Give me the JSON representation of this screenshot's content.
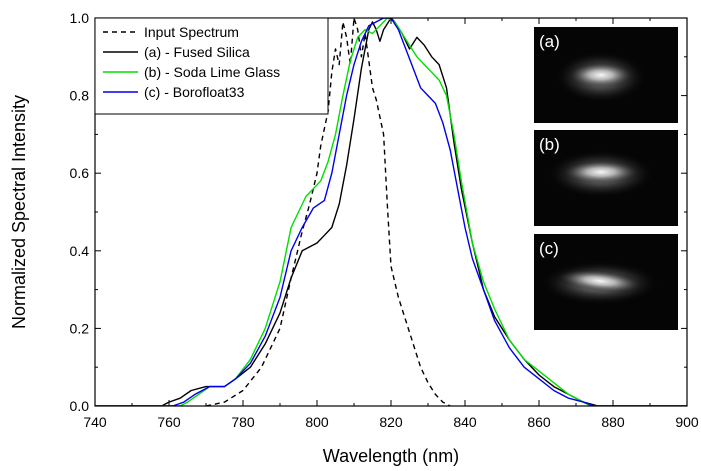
{
  "chart_data": {
    "type": "line",
    "xlabel": "Wavelength (nm)",
    "ylabel": "Normalized Spectral Intensity",
    "xlim": [
      740,
      900
    ],
    "ylim": [
      0.0,
      1.0
    ],
    "xticks": [
      "740",
      "760",
      "780",
      "800",
      "820",
      "840",
      "860",
      "880",
      "900"
    ],
    "yticks": [
      "0.0",
      "0.2",
      "0.4",
      "0.6",
      "0.8",
      "1.0"
    ],
    "grid": false,
    "legend_position": "top-left",
    "series": [
      {
        "name": "Input Spectrum",
        "color": "#000000",
        "dash": "dashed",
        "points": [
          [
            770,
            0
          ],
          [
            775,
            0.01
          ],
          [
            780,
            0.04
          ],
          [
            785,
            0.1
          ],
          [
            790,
            0.2
          ],
          [
            793,
            0.33
          ],
          [
            796,
            0.45
          ],
          [
            798,
            0.52
          ],
          [
            800,
            0.6
          ],
          [
            801,
            0.67
          ],
          [
            803,
            0.76
          ],
          [
            804,
            0.86
          ],
          [
            805,
            0.92
          ],
          [
            806,
            0.88
          ],
          [
            807,
            0.99
          ],
          [
            808,
            0.95
          ],
          [
            809,
            0.88
          ],
          [
            810,
            1.0
          ],
          [
            811,
            0.97
          ],
          [
            812,
            0.9
          ],
          [
            813,
            0.96
          ],
          [
            814,
            0.89
          ],
          [
            815,
            0.82
          ],
          [
            816,
            0.79
          ],
          [
            818,
            0.7
          ],
          [
            819,
            0.52
          ],
          [
            820,
            0.36
          ],
          [
            822,
            0.28
          ],
          [
            824,
            0.22
          ],
          [
            826,
            0.16
          ],
          [
            828,
            0.1
          ],
          [
            830,
            0.06
          ],
          [
            832,
            0.03
          ],
          [
            834,
            0.01
          ],
          [
            836,
            0
          ]
        ]
      },
      {
        "name": "(a) - Fused Silica",
        "color": "#000000",
        "dash": "solid",
        "points": [
          [
            758,
            0
          ],
          [
            760,
            0.01
          ],
          [
            763,
            0.02
          ],
          [
            766,
            0.04
          ],
          [
            770,
            0.05
          ],
          [
            775,
            0.05
          ],
          [
            778,
            0.07
          ],
          [
            782,
            0.1
          ],
          [
            786,
            0.16
          ],
          [
            790,
            0.24
          ],
          [
            793,
            0.33
          ],
          [
            796,
            0.4
          ],
          [
            798,
            0.41
          ],
          [
            800,
            0.42
          ],
          [
            802,
            0.44
          ],
          [
            804,
            0.46
          ],
          [
            806,
            0.52
          ],
          [
            808,
            0.62
          ],
          [
            810,
            0.74
          ],
          [
            812,
            0.87
          ],
          [
            814,
            0.97
          ],
          [
            815,
            0.99
          ],
          [
            816,
            0.97
          ],
          [
            817,
            0.94
          ],
          [
            818,
            0.97
          ],
          [
            820,
            1.0
          ],
          [
            821,
            0.99
          ],
          [
            823,
            0.96
          ],
          [
            825,
            0.92
          ],
          [
            827,
            0.95
          ],
          [
            829,
            0.93
          ],
          [
            831,
            0.9
          ],
          [
            833,
            0.88
          ],
          [
            835,
            0.82
          ],
          [
            837,
            0.68
          ],
          [
            839,
            0.56
          ],
          [
            842,
            0.42
          ],
          [
            845,
            0.3
          ],
          [
            848,
            0.23
          ],
          [
            852,
            0.17
          ],
          [
            856,
            0.12
          ],
          [
            860,
            0.08
          ],
          [
            864,
            0.05
          ],
          [
            868,
            0.03
          ],
          [
            872,
            0.01
          ],
          [
            876,
            0
          ]
        ]
      },
      {
        "name": "(b) - Soda Lime Glass",
        "color": "#00dd00",
        "dash": "solid",
        "points": [
          [
            763,
            0
          ],
          [
            765,
            0.01
          ],
          [
            768,
            0.03
          ],
          [
            771,
            0.05
          ],
          [
            775,
            0.05
          ],
          [
            778,
            0.07
          ],
          [
            782,
            0.12
          ],
          [
            786,
            0.2
          ],
          [
            790,
            0.32
          ],
          [
            793,
            0.46
          ],
          [
            795,
            0.5
          ],
          [
            797,
            0.54
          ],
          [
            799,
            0.56
          ],
          [
            801,
            0.58
          ],
          [
            803,
            0.63
          ],
          [
            805,
            0.7
          ],
          [
            807,
            0.8
          ],
          [
            809,
            0.89
          ],
          [
            811,
            0.95
          ],
          [
            813,
            0.97
          ],
          [
            815,
            0.96
          ],
          [
            817,
            0.98
          ],
          [
            819,
            1.0
          ],
          [
            821,
            0.99
          ],
          [
            823,
            0.96
          ],
          [
            825,
            0.93
          ],
          [
            827,
            0.9
          ],
          [
            829,
            0.88
          ],
          [
            831,
            0.86
          ],
          [
            833,
            0.84
          ],
          [
            835,
            0.8
          ],
          [
            837,
            0.7
          ],
          [
            839,
            0.58
          ],
          [
            842,
            0.42
          ],
          [
            845,
            0.32
          ],
          [
            848,
            0.25
          ],
          [
            852,
            0.17
          ],
          [
            856,
            0.12
          ],
          [
            860,
            0.09
          ],
          [
            864,
            0.06
          ],
          [
            868,
            0.03
          ],
          [
            872,
            0.01
          ],
          [
            874,
            0
          ]
        ]
      },
      {
        "name": "(c) - Borofloat33",
        "color": "#0000ee",
        "dash": "solid",
        "points": [
          [
            761,
            0
          ],
          [
            764,
            0.01
          ],
          [
            767,
            0.03
          ],
          [
            771,
            0.05
          ],
          [
            775,
            0.05
          ],
          [
            778,
            0.07
          ],
          [
            782,
            0.11
          ],
          [
            786,
            0.18
          ],
          [
            790,
            0.28
          ],
          [
            793,
            0.4
          ],
          [
            796,
            0.46
          ],
          [
            799,
            0.51
          ],
          [
            802,
            0.53
          ],
          [
            804,
            0.6
          ],
          [
            806,
            0.7
          ],
          [
            808,
            0.8
          ],
          [
            810,
            0.88
          ],
          [
            812,
            0.94
          ],
          [
            814,
            0.98
          ],
          [
            816,
            0.99
          ],
          [
            818,
            1.0
          ],
          [
            820,
            1.0
          ],
          [
            822,
            0.97
          ],
          [
            824,
            0.92
          ],
          [
            826,
            0.87
          ],
          [
            828,
            0.82
          ],
          [
            830,
            0.8
          ],
          [
            832,
            0.78
          ],
          [
            834,
            0.73
          ],
          [
            836,
            0.66
          ],
          [
            838,
            0.56
          ],
          [
            840,
            0.46
          ],
          [
            842,
            0.38
          ],
          [
            845,
            0.3
          ],
          [
            848,
            0.22
          ],
          [
            852,
            0.15
          ],
          [
            856,
            0.1
          ],
          [
            860,
            0.07
          ],
          [
            864,
            0.04
          ],
          [
            868,
            0.02
          ],
          [
            872,
            0.01
          ],
          [
            875,
            0
          ]
        ]
      }
    ],
    "insets": [
      {
        "label": "(a)"
      },
      {
        "label": "(b)"
      },
      {
        "label": "(c)"
      }
    ]
  }
}
